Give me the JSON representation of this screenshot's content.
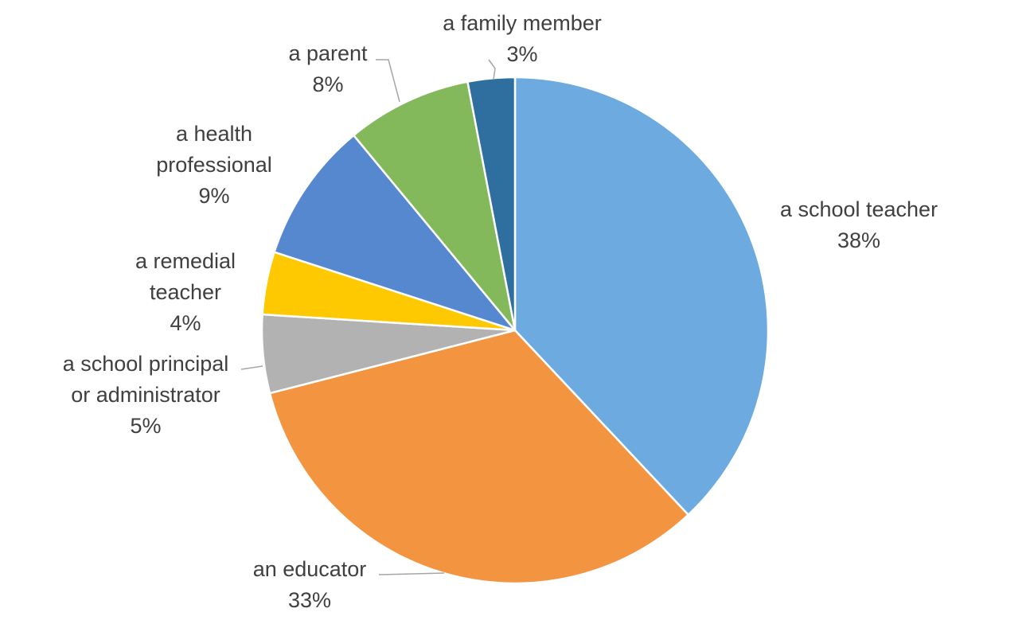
{
  "chart_data": {
    "type": "pie",
    "title": "",
    "start_angle_deg": 0,
    "direction": "clockwise",
    "slices": [
      {
        "label": [
          "a school teacher"
        ],
        "value": 38,
        "display": "38%",
        "color": "#6caadf"
      },
      {
        "label": [
          "an educator"
        ],
        "value": 33,
        "display": "33%",
        "color": "#f39441"
      },
      {
        "label": [
          "a school principal",
          "or administrator"
        ],
        "value": 5,
        "display": "5%",
        "color": "#b2b2b2"
      },
      {
        "label": [
          "a remedial",
          "teacher"
        ],
        "value": 4,
        "display": "4%",
        "color": "#fec900"
      },
      {
        "label": [
          "a health",
          "professional"
        ],
        "value": 9,
        "display": "9%",
        "color": "#5688cf"
      },
      {
        "label": [
          "a parent"
        ],
        "value": 8,
        "display": "8%",
        "color": "#83b95a"
      },
      {
        "label": [
          "a family member"
        ],
        "value": 3,
        "display": "3%",
        "color": "#2e6fa0"
      }
    ]
  }
}
